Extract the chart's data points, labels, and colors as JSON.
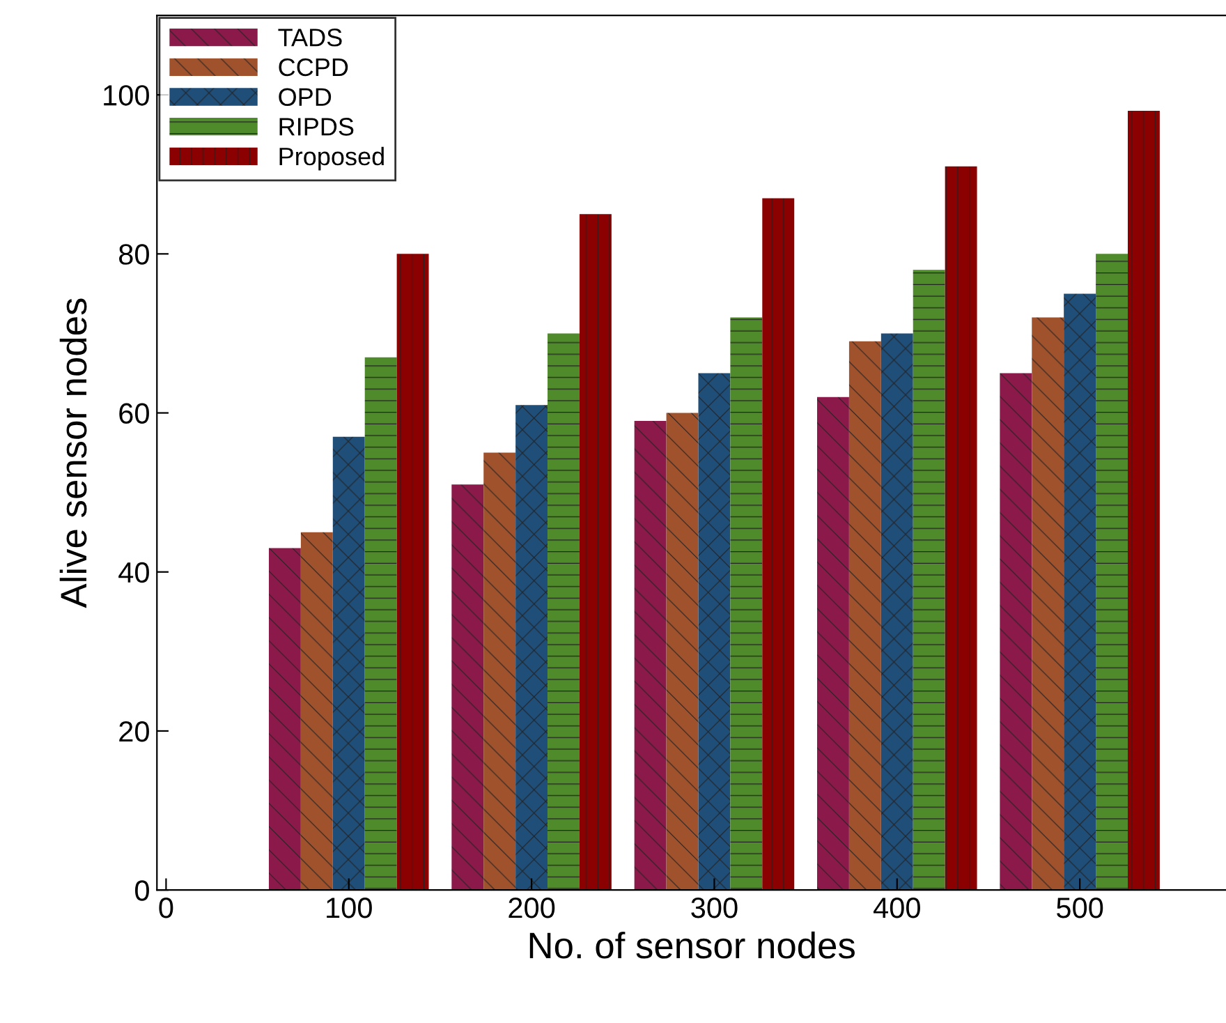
{
  "chart_data": {
    "type": "bar",
    "xlabel": "No. of sensor nodes",
    "ylabel": "Alive sensor nodes",
    "x": [
      100,
      200,
      300,
      400,
      500
    ],
    "series": [
      {
        "name": "TADS",
        "color": "#8b1a4a",
        "values": [
          43,
          51,
          59,
          62,
          65
        ]
      },
      {
        "name": "CCPD",
        "color": "#a0522d",
        "values": [
          45,
          55,
          60,
          69,
          72
        ]
      },
      {
        "name": "OPD",
        "color": "#1f4e79",
        "values": [
          57,
          61,
          65,
          70,
          75
        ]
      },
      {
        "name": "RIPDS",
        "color": "#4f8a2b",
        "values": [
          67,
          70,
          72,
          78,
          80
        ]
      },
      {
        "name": "Proposed",
        "color": "#8b0000",
        "values": [
          80,
          85,
          87,
          91,
          98
        ]
      }
    ],
    "xlim": [
      -5,
      580
    ],
    "ylim": [
      0,
      110
    ],
    "xticks": [
      0,
      100,
      200,
      300,
      400,
      500
    ],
    "yticks": [
      0,
      20,
      40,
      60,
      80,
      100
    ],
    "grid": false,
    "legend": "top left"
  }
}
